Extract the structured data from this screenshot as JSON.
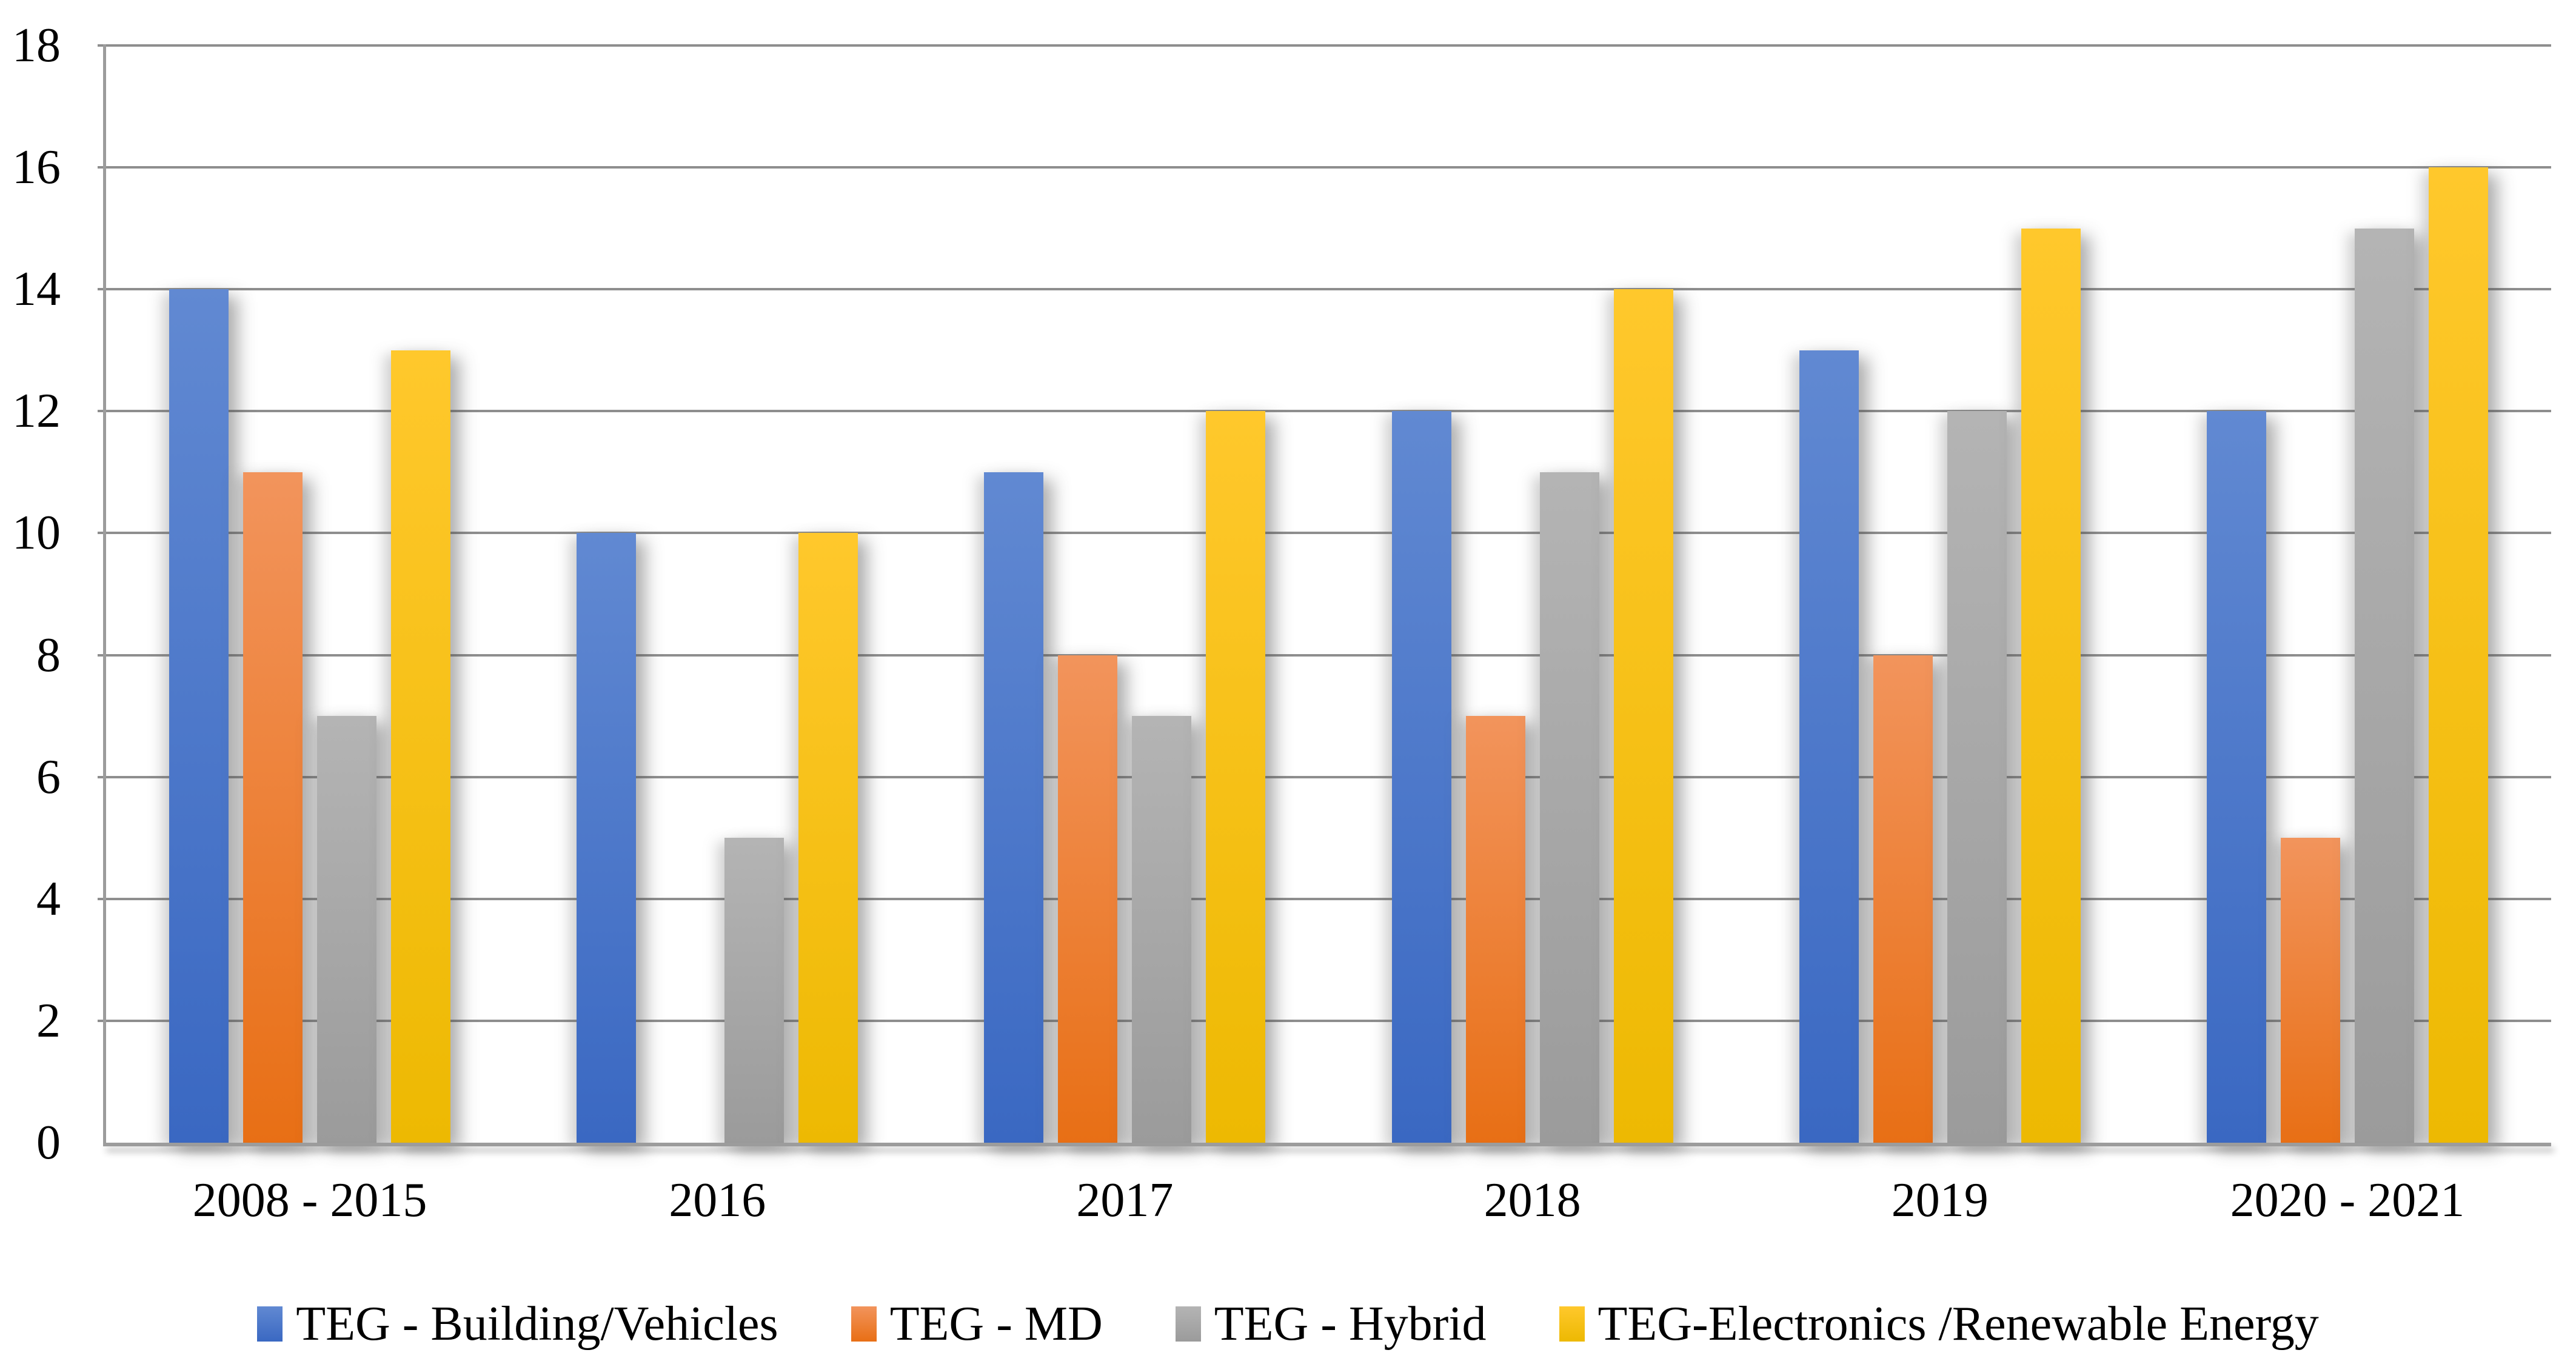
{
  "chart_data": {
    "type": "bar",
    "title": "",
    "categories": [
      "2008 - 2015",
      "2016",
      "2017",
      "2018",
      "2019",
      "2020 - 2021"
    ],
    "series": [
      {
        "name": "TEG - Building/Vehicles",
        "color": "#4472C4",
        "gradient_top": "#6189d2",
        "gradient_bottom": "#3a68c2",
        "values": [
          14,
          10,
          11,
          12,
          13,
          12
        ]
      },
      {
        "name": "TEG - MD",
        "color": "#ED7D31",
        "gradient_top": "#f2945c",
        "gradient_bottom": "#e86f15",
        "values": [
          11,
          0,
          8,
          7,
          8,
          5
        ]
      },
      {
        "name": "TEG - Hybrid",
        "color": "#A5A5A5",
        "gradient_top": "#b4b4b4",
        "gradient_bottom": "#9b9b9b",
        "values": [
          7,
          5,
          7,
          11,
          12,
          15
        ]
      },
      {
        "name": "TEG-Electronics /Renewable Energy",
        "color": "#FFC000",
        "gradient_top": "#ffc82c",
        "gradient_bottom": "#edb902",
        "values": [
          13,
          10,
          12,
          14,
          15,
          16
        ]
      }
    ],
    "xlabel": "",
    "ylabel": "",
    "ylim": [
      0,
      18
    ],
    "y_ticks": [
      0,
      2,
      4,
      6,
      8,
      10,
      12,
      14,
      16,
      18
    ],
    "grid": true,
    "gridline_color": "#8e8e8e",
    "axis_color": "#9c9c9c",
    "legend_position": "bottom"
  }
}
